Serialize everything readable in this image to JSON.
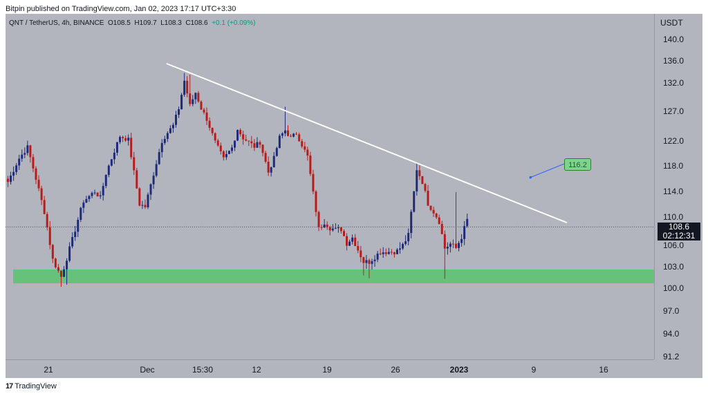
{
  "published": "Bitpin published on TradingView.com, Jan 02, 2023 17:17 UTC+3:30",
  "legend": {
    "symbol": "QNT / TetherUS, 4h, BINANCE",
    "open": "O108.5",
    "high": "H109.7",
    "low": "L108.3",
    "close": "C108.6",
    "change": "+0.1 (+0.09%)"
  },
  "price_axis": {
    "unit": "USDT",
    "current_price": "108.6",
    "countdown": "02:12:31"
  },
  "target_label": "116.2",
  "brand": {
    "logo": "17",
    "name": "TradingView"
  },
  "colors": {
    "up": "#1e2a7a",
    "down": "#b71c1c",
    "zone": "#66c27b",
    "trendline": "#ffffff",
    "background": "#b2b5be"
  },
  "chart_data": {
    "type": "candlestick",
    "symbol": "QNT / TetherUS",
    "interval": "4h",
    "y_ticks": [
      "140.0",
      "136.0",
      "132.0",
      "127.0",
      "122.0",
      "118.0",
      "114.0",
      "110.0",
      "106.0",
      "103.0",
      "100.0",
      "97.0",
      "94.0",
      "91.2"
    ],
    "x_ticks": [
      "21",
      "Dec",
      "15:30",
      "12",
      "19",
      "26",
      "2023",
      "9",
      "16"
    ],
    "anchors": [
      [
        0,
        115.5
      ],
      [
        4,
        119.2
      ],
      [
        7,
        121
      ],
      [
        10,
        116
      ],
      [
        13,
        110.8
      ],
      [
        16,
        104
      ],
      [
        19,
        101.6
      ],
      [
        21,
        104.2
      ],
      [
        23,
        106.8
      ],
      [
        27,
        112.5
      ],
      [
        31,
        114
      ],
      [
        33,
        113
      ],
      [
        35,
        116.8
      ],
      [
        38,
        120.4
      ],
      [
        40,
        122.8
      ],
      [
        43,
        122.2
      ],
      [
        45,
        117
      ],
      [
        47,
        112
      ],
      [
        49,
        111.6
      ],
      [
        51,
        115
      ],
      [
        53,
        118.5
      ],
      [
        55,
        122
      ],
      [
        57,
        123.4
      ],
      [
        59,
        124.6
      ],
      [
        61,
        127.5
      ],
      [
        63,
        132.4
      ],
      [
        65,
        128
      ],
      [
        67,
        130.3
      ],
      [
        69,
        127.5
      ],
      [
        71,
        125.7
      ],
      [
        74,
        121.8
      ],
      [
        77,
        119.1
      ],
      [
        80,
        120.9
      ],
      [
        82,
        124
      ],
      [
        84,
        122.5
      ],
      [
        86,
        121.8
      ],
      [
        88,
        121.1
      ],
      [
        90,
        121.8
      ],
      [
        93,
        117
      ],
      [
        95,
        119.2
      ],
      [
        97,
        122.6
      ],
      [
        99,
        123.8
      ],
      [
        101,
        122.5
      ],
      [
        103,
        123.3
      ],
      [
        105,
        121.4
      ],
      [
        107,
        119.5
      ],
      [
        109,
        113.7
      ],
      [
        111,
        108.3
      ],
      [
        113,
        109.3
      ],
      [
        115,
        108.5
      ],
      [
        117,
        108.2
      ],
      [
        119,
        108.3
      ],
      [
        121,
        106.3
      ],
      [
        123,
        107.1
      ],
      [
        125,
        105.4
      ],
      [
        127,
        103.7
      ],
      [
        129,
        103.7
      ],
      [
        131,
        104.4
      ],
      [
        133,
        105.1
      ],
      [
        135,
        105.1
      ],
      [
        137,
        105.1
      ],
      [
        139,
        105.2
      ],
      [
        141,
        106
      ],
      [
        143,
        107.4
      ],
      [
        145,
        113.9
      ],
      [
        146,
        117.5
      ],
      [
        148,
        115.5
      ],
      [
        150,
        112.1
      ],
      [
        152,
        110.8
      ],
      [
        154,
        109.4
      ],
      [
        156,
        105.6
      ],
      [
        158,
        106.2
      ],
      [
        160,
        105.6
      ],
      [
        162,
        107.2
      ],
      [
        164,
        109.6
      ]
    ],
    "trendline": {
      "from": {
        "bar": 57,
        "price": 135.5
      },
      "to": {
        "bar": 200,
        "price": 109.2
      }
    },
    "support_zone": [
      101.2,
      102.8
    ],
    "target": {
      "bar": 187,
      "price": 116.2
    },
    "last_price": 108.6
  }
}
